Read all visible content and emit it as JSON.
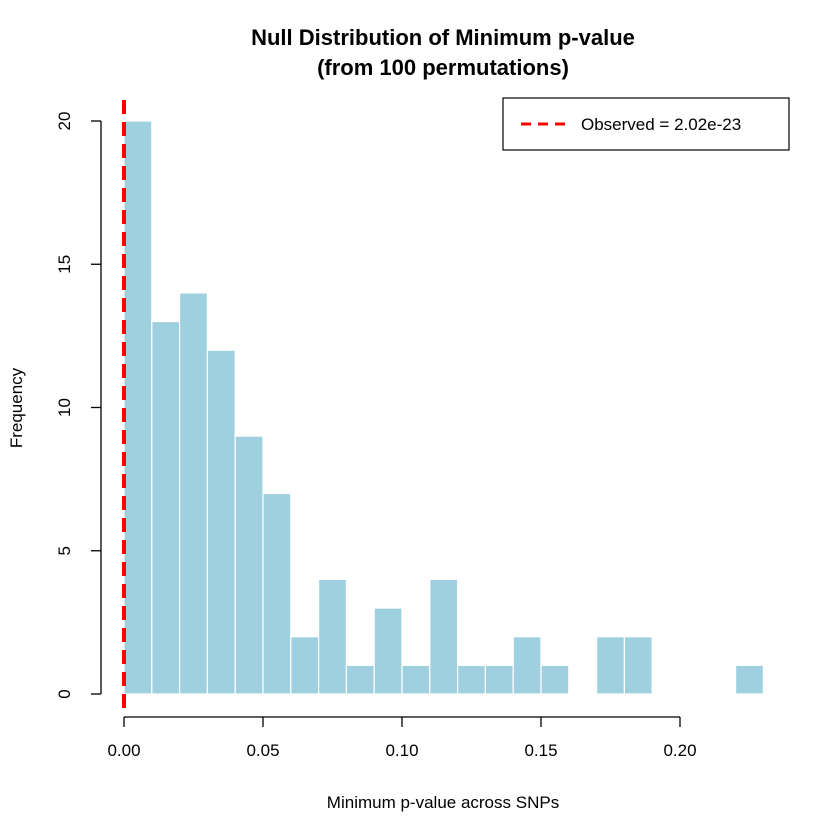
{
  "colors": {
    "bar_fill": "#9fd0e0",
    "bar_border": "#ffffff",
    "observed_line": "#ff0000",
    "axis": "#000000"
  },
  "chart_data": {
    "type": "bar",
    "title_line1": "Null Distribution of Minimum p-value",
    "title_line2": "(from 100 permutations)",
    "xlabel": "Minimum p-value across SNPs",
    "ylabel": "Frequency",
    "bin_width": 0.01,
    "bins": [
      {
        "start": 0.0,
        "end": 0.01,
        "count": 20
      },
      {
        "start": 0.01,
        "end": 0.02,
        "count": 13
      },
      {
        "start": 0.02,
        "end": 0.03,
        "count": 14
      },
      {
        "start": 0.03,
        "end": 0.04,
        "count": 12
      },
      {
        "start": 0.04,
        "end": 0.05,
        "count": 9
      },
      {
        "start": 0.05,
        "end": 0.06,
        "count": 7
      },
      {
        "start": 0.06,
        "end": 0.07,
        "count": 2
      },
      {
        "start": 0.07,
        "end": 0.08,
        "count": 4
      },
      {
        "start": 0.08,
        "end": 0.09,
        "count": 1
      },
      {
        "start": 0.09,
        "end": 0.1,
        "count": 3
      },
      {
        "start": 0.1,
        "end": 0.11,
        "count": 1
      },
      {
        "start": 0.11,
        "end": 0.12,
        "count": 4
      },
      {
        "start": 0.12,
        "end": 0.13,
        "count": 1
      },
      {
        "start": 0.13,
        "end": 0.14,
        "count": 1
      },
      {
        "start": 0.14,
        "end": 0.15,
        "count": 2
      },
      {
        "start": 0.15,
        "end": 0.16,
        "count": 1
      },
      {
        "start": 0.16,
        "end": 0.17,
        "count": 0
      },
      {
        "start": 0.17,
        "end": 0.18,
        "count": 2
      },
      {
        "start": 0.18,
        "end": 0.19,
        "count": 2
      },
      {
        "start": 0.19,
        "end": 0.2,
        "count": 0
      },
      {
        "start": 0.2,
        "end": 0.21,
        "count": 0
      },
      {
        "start": 0.21,
        "end": 0.22,
        "count": 0
      },
      {
        "start": 0.22,
        "end": 0.23,
        "count": 1
      }
    ],
    "xlim": [
      0.0,
      0.2
    ],
    "ylim": [
      0,
      20
    ],
    "x_ticks": [
      0.0,
      0.05,
      0.1,
      0.15,
      0.2
    ],
    "x_tick_labels": [
      "0.00",
      "0.05",
      "0.10",
      "0.15",
      "0.20"
    ],
    "y_ticks": [
      0,
      5,
      10,
      15,
      20
    ],
    "y_tick_labels": [
      "0",
      "5",
      "10",
      "15",
      "20"
    ],
    "observed_value": 2.02e-23,
    "legend": {
      "label": "Observed = 2.02e-23",
      "position": "top-right",
      "line_style": "dashed"
    }
  }
}
